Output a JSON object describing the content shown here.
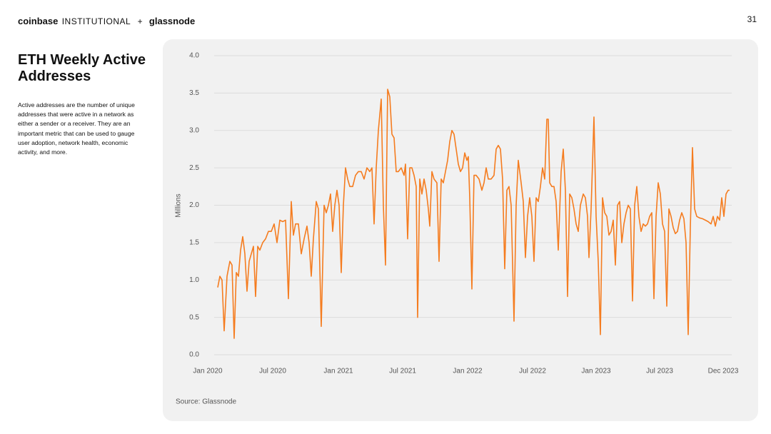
{
  "header": {
    "brand": "coinbase",
    "brand_suffix": "INSTITUTIONAL",
    "separator": "+",
    "partner": "glassnode"
  },
  "page_number": "31",
  "description": "Active addresses are the number of unique addresses that were active in a network as either a sender or a receiver. They are an important metric that can be used to gauge user adoption, network health, economic activity, and more.",
  "chart_data": {
    "type": "line",
    "title": "ETH Weekly Active Addresses",
    "ylabel": "Millions",
    "source": "Source: Glassnode",
    "color": "#f57c1f",
    "grid": true,
    "ylim": [
      0,
      4
    ],
    "yticks": [
      {
        "value": 0,
        "label": "0.0"
      },
      0.5,
      {
        "value": 1,
        "label": "1.0"
      },
      1.5,
      {
        "value": 2,
        "label": "2.0"
      },
      2.5,
      {
        "value": 3,
        "label": "3.0"
      },
      3.5,
      {
        "value": 4,
        "label": "4.0"
      }
    ],
    "xlim": [
      0,
      1468
    ],
    "xticks": [
      {
        "value": 0,
        "label": "Jan 2020"
      },
      {
        "value": 182,
        "label": "Jul 2020"
      },
      {
        "value": 366,
        "label": "Jan 2021"
      },
      {
        "value": 546,
        "label": "Jul 2021"
      },
      {
        "value": 728,
        "label": "Jan 2022"
      },
      {
        "value": 910,
        "label": "Jul 2022"
      },
      {
        "value": 1088,
        "label": "Jan 2023"
      },
      {
        "value": 1266,
        "label": "Jul 2023"
      },
      {
        "value": 1444,
        "label": "Dec 2023"
      }
    ],
    "x": [
      28,
      34,
      40,
      46,
      54,
      62,
      68,
      74,
      80,
      86,
      92,
      98,
      104,
      110,
      116,
      122,
      128,
      134,
      140,
      146,
      154,
      162,
      170,
      178,
      186,
      194,
      202,
      210,
      218,
      226,
      234,
      240,
      246,
      254,
      262,
      270,
      278,
      284,
      290,
      296,
      304,
      310,
      318,
      326,
      332,
      338,
      344,
      350,
      356,
      362,
      368,
      374,
      380,
      386,
      392,
      398,
      406,
      414,
      422,
      430,
      438,
      446,
      454,
      460,
      466,
      472,
      478,
      486,
      492,
      498,
      504,
      510,
      516,
      522,
      528,
      534,
      542,
      550,
      554,
      560,
      566,
      572,
      578,
      584,
      588,
      594,
      600,
      606,
      612,
      618,
      622,
      628,
      634,
      642,
      648,
      654,
      660,
      666,
      672,
      678,
      684,
      690,
      696,
      702,
      708,
      714,
      720,
      726,
      730,
      734,
      740,
      746,
      752,
      760,
      768,
      774,
      780,
      786,
      794,
      802,
      808,
      814,
      820,
      826,
      832,
      838,
      844,
      850,
      858,
      864,
      870,
      878,
      884,
      890,
      896,
      902,
      908,
      914,
      920,
      926,
      932,
      938,
      944,
      950,
      954,
      958,
      964,
      970,
      976,
      982,
      990,
      996,
      1002,
      1008,
      1014,
      1020,
      1026,
      1032,
      1038,
      1044,
      1052,
      1058,
      1064,
      1068,
      1074,
      1082,
      1088,
      1094,
      1100,
      1106,
      1112,
      1118,
      1124,
      1130,
      1136,
      1142,
      1148,
      1154,
      1160,
      1166,
      1172,
      1178,
      1184,
      1190,
      1196,
      1202,
      1208,
      1214,
      1220,
      1226,
      1232,
      1238,
      1244,
      1250,
      1256,
      1262,
      1268,
      1274,
      1280,
      1286,
      1292,
      1298,
      1304,
      1310,
      1316,
      1322,
      1328,
      1334,
      1340,
      1346,
      1352,
      1358,
      1364,
      1370,
      1378,
      1386,
      1394,
      1402,
      1410,
      1416,
      1422,
      1428,
      1434,
      1440,
      1446,
      1452,
      1458,
      1462
    ],
    "values": [
      0.9,
      1.05,
      1.0,
      0.32,
      1.05,
      1.25,
      1.2,
      0.22,
      1.1,
      1.05,
      1.4,
      1.58,
      1.35,
      0.85,
      1.25,
      1.35,
      1.45,
      0.78,
      1.45,
      1.4,
      1.5,
      1.55,
      1.65,
      1.65,
      1.75,
      1.5,
      1.8,
      1.78,
      1.8,
      0.75,
      2.05,
      1.6,
      1.75,
      1.75,
      1.35,
      1.55,
      1.72,
      1.5,
      1.05,
      1.55,
      2.05,
      1.95,
      0.38,
      2.0,
      1.9,
      2.0,
      2.15,
      1.65,
      2.0,
      2.2,
      2.0,
      1.1,
      2.0,
      2.5,
      2.35,
      2.25,
      2.25,
      2.4,
      2.45,
      2.45,
      2.35,
      2.5,
      2.45,
      2.5,
      1.75,
      2.5,
      3.0,
      3.42,
      2.0,
      1.2,
      3.55,
      3.45,
      2.95,
      2.9,
      2.45,
      2.45,
      2.5,
      2.4,
      2.55,
      1.55,
      2.5,
      2.5,
      2.4,
      2.25,
      0.5,
      2.35,
      2.15,
      2.35,
      2.2,
      1.95,
      1.72,
      2.45,
      2.35,
      2.3,
      1.25,
      2.35,
      2.3,
      2.45,
      2.6,
      2.85,
      3.0,
      2.95,
      2.75,
      2.55,
      2.45,
      2.5,
      2.7,
      2.6,
      2.65,
      2.1,
      0.88,
      2.4,
      2.4,
      2.35,
      2.2,
      2.3,
      2.5,
      2.35,
      2.35,
      2.4,
      2.75,
      2.8,
      2.75,
      2.35,
      1.15,
      2.2,
      2.25,
      2.0,
      0.45,
      2.0,
      2.6,
      2.3,
      2.05,
      1.3,
      1.85,
      2.1,
      1.85,
      1.25,
      2.1,
      2.05,
      2.25,
      2.5,
      2.35,
      3.15,
      3.15,
      2.3,
      2.25,
      2.25,
      2.05,
      1.4,
      2.45,
      2.75,
      2.2,
      0.78,
      2.15,
      2.1,
      1.95,
      1.75,
      1.65,
      2.0,
      2.15,
      2.1,
      1.85,
      1.3,
      1.95,
      3.18,
      1.85,
      1.25,
      0.27,
      2.1,
      1.9,
      1.85,
      1.6,
      1.65,
      1.8,
      1.2,
      2.0,
      2.05,
      1.5,
      1.75,
      1.9,
      2.0,
      1.95,
      0.72,
      2.0,
      2.25,
      1.85,
      1.65,
      1.75,
      1.72,
      1.75,
      1.85,
      1.9,
      0.75,
      1.85,
      2.3,
      2.15,
      1.75,
      1.65,
      0.65,
      1.95,
      1.85,
      1.7,
      1.62,
      1.65,
      1.8,
      1.9,
      1.82,
      1.5,
      0.27,
      1.7,
      2.77,
      1.95,
      1.85,
      1.83,
      1.82,
      1.8,
      1.78,
      1.75,
      1.85,
      1.72,
      1.85,
      1.8,
      2.1,
      1.85,
      2.15,
      2.2,
      2.2
    ]
  }
}
